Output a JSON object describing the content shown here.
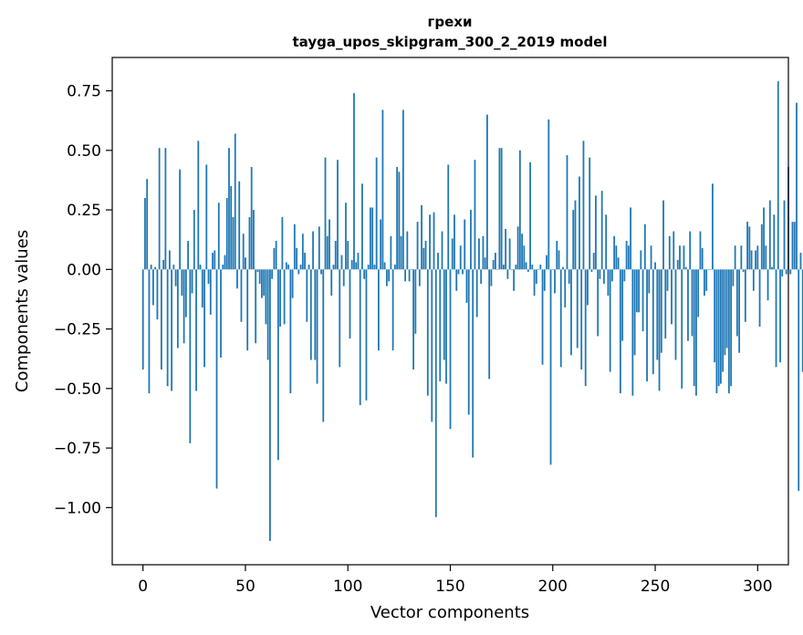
{
  "chart_data": {
    "type": "bar",
    "title": "грехи",
    "subtitle": "tayga_upos_skipgram_300_2_2019 model",
    "xlabel": "Vector components",
    "ylabel": "Components values",
    "xlim": [
      -15,
      315
    ],
    "ylim": [
      -1.24,
      0.89
    ],
    "xticks": [
      0,
      50,
      100,
      150,
      200,
      250,
      300
    ],
    "yticks": [
      -1.0,
      -0.75,
      -0.5,
      -0.25,
      0.0,
      0.25,
      0.5,
      0.75
    ],
    "ytick_labels": [
      "−1.00",
      "−0.75",
      "−0.50",
      "−0.25",
      "0.00",
      "0.25",
      "0.50",
      "0.75"
    ],
    "bar_color": "#1f77b4",
    "grid": false,
    "values": [
      -0.42,
      0.3,
      0.38,
      -0.52,
      0.02,
      -0.15,
      0.01,
      -0.21,
      0.51,
      -0.42,
      0.04,
      0.51,
      -0.49,
      0.08,
      -0.51,
      0.02,
      -0.07,
      -0.33,
      0.42,
      -0.11,
      -0.31,
      -0.2,
      0.12,
      -0.73,
      -0.1,
      0.25,
      -0.51,
      0.54,
      0.02,
      -0.16,
      -0.41,
      0.44,
      -0.06,
      -0.19,
      0.07,
      0.08,
      -0.92,
      0.28,
      -0.37,
      0.02,
      0.06,
      0.3,
      0.51,
      0.35,
      0.22,
      0.57,
      -0.08,
      0.37,
      -0.22,
      0.15,
      0.05,
      -0.34,
      0.22,
      0.43,
      0.25,
      -0.31,
      -0.01,
      -0.06,
      -0.12,
      -0.11,
      -0.23,
      -0.38,
      -1.14,
      -0.04,
      0.09,
      0.12,
      -0.8,
      -0.24,
      0.22,
      -0.23,
      0.03,
      0.02,
      -0.52,
      -0.12,
      0.19,
      0.09,
      -0.02,
      0.02,
      0.15,
      0.07,
      -0.22,
      0.02,
      -0.38,
      0.16,
      -0.38,
      -0.48,
      0.18,
      -0.02,
      -0.64,
      0.47,
      0.14,
      0.21,
      -0.11,
      0.02,
      0.12,
      0.46,
      -0.41,
      0.06,
      -0.07,
      0.28,
      0.12,
      -0.29,
      0.04,
      0.74,
      0.03,
      0.07,
      -0.57,
      0.36,
      -0.04,
      -0.55,
      0.02,
      0.26,
      0.26,
      0.02,
      0.47,
      -0.34,
      0.21,
      0.67,
      0.03,
      -0.07,
      -0.05,
      0.14,
      -0.34,
      0.02,
      0.43,
      0.41,
      0.14,
      0.67,
      -0.05,
      0.16,
      -0.05,
      0.0,
      -0.42,
      -0.27,
      0.2,
      -0.07,
      0.27,
      0.09,
      0.12,
      -0.53,
      0.23,
      -0.64,
      0.24,
      -1.04,
      0.07,
      -0.47,
      0.16,
      -0.38,
      -0.48,
      0.44,
      -0.67,
      0.13,
      0.23,
      -0.09,
      -0.02,
      0.1,
      -0.02,
      0.21,
      -0.14,
      -0.61,
      0.25,
      -0.79,
      0.46,
      -0.2,
      0.13,
      -0.06,
      0.14,
      0.05,
      0.65,
      -0.46,
      -0.07,
      0.04,
      0.07,
      0.0,
      0.51,
      0.51,
      0.02,
      0.17,
      -0.04,
      0.13,
      0.0,
      -0.09,
      0.02,
      0.18,
      0.5,
      0.15,
      0.1,
      0.03,
      -0.01,
      0.45,
      0.02,
      -0.11,
      -0.06,
      0.0,
      0.02,
      -0.4,
      -0.09,
      0.06,
      0.63,
      -0.82,
      0.0,
      -0.1,
      0.12,
      0.08,
      -0.41,
      0.01,
      -0.16,
      0.48,
      -0.06,
      -0.36,
      0.25,
      0.29,
      -0.33,
      0.39,
      -0.42,
      0.54,
      -0.49,
      -0.15,
      0.47,
      -0.01,
      0.07,
      0.31,
      -0.28,
      -0.04,
      0.33,
      -0.06,
      0.23,
      -0.11,
      -0.43,
      -0.05,
      0.14,
      0.1,
      0.05,
      -0.52,
      -0.3,
      -0.05,
      0.12,
      0.1,
      0.26,
      -0.53,
      -0.36,
      -0.18,
      -0.18,
      0.08,
      -0.26,
      0.19,
      -0.47,
      -0.1,
      0.1,
      -0.44,
      0.03,
      -0.38,
      -0.51,
      -0.35,
      0.29,
      -0.29,
      -0.09,
      0.14,
      -0.23,
      0.16,
      -0.38,
      0.04,
      0.1,
      -0.5,
      0.1,
      0.01,
      -0.3,
      0.16,
      -0.28,
      -0.49,
      -0.53,
      -0.2,
      0.16,
      0.09,
      -0.11,
      -0.09,
      0.0,
      0.0,
      0.36,
      -0.39,
      -0.52,
      -0.49,
      -0.48,
      -0.43,
      -0.36,
      -0.33,
      -0.52,
      -0.49,
      -0.07,
      0.1,
      -0.28,
      -0.35,
      0.1,
      -0.01,
      -0.22,
      0.2,
      0.18,
      0.08,
      -0.09,
      0.08,
      0.1,
      -0.24,
      0.19,
      0.26,
      0.1,
      -0.13,
      0.29,
      0.01,
      0.23,
      -0.41,
      0.79,
      -0.39,
      -0.03,
      0.29,
      -0.02,
      0.43,
      -0.02,
      0.2,
      0.2,
      0.7,
      -0.93,
      0.07,
      -0.43,
      0.0
    ]
  }
}
